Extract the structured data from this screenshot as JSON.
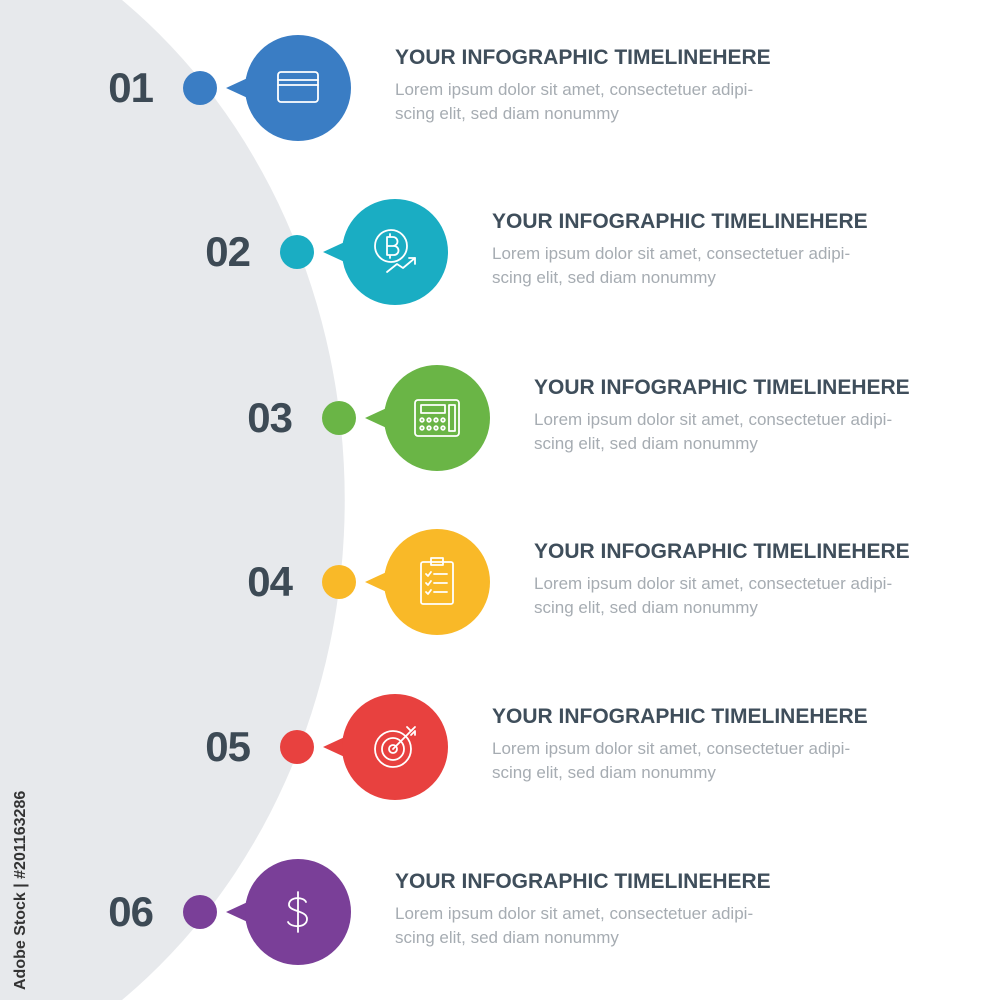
{
  "items": [
    {
      "number": "01",
      "title": "YOUR INFOGRAPHIC TIMELINEHERE",
      "line1": "Lorem ipsum dolor sit amet, consectetuer adipi-",
      "line2": "scing elit, sed diam nonummy",
      "color": "#3a7dc4",
      "icon": "credit-card-icon"
    },
    {
      "number": "02",
      "title": "YOUR INFOGRAPHIC TIMELINEHERE",
      "line1": "Lorem ipsum dolor sit amet, consectetuer adipi-",
      "line2": "scing elit, sed diam nonummy",
      "color": "#1aadc3",
      "icon": "bitcoin-growth-icon"
    },
    {
      "number": "03",
      "title": "YOUR INFOGRAPHIC TIMELINEHERE",
      "line1": "Lorem ipsum dolor sit amet, consectetuer adipi-",
      "line2": "scing elit, sed diam nonummy",
      "color": "#6ab546",
      "icon": "card-terminal-icon"
    },
    {
      "number": "04",
      "title": "YOUR INFOGRAPHIC TIMELINEHERE",
      "line1": "Lorem ipsum dolor sit amet, consectetuer adipi-",
      "line2": "scing elit, sed diam nonummy",
      "color": "#f9b928",
      "icon": "clipboard-checklist-icon"
    },
    {
      "number": "05",
      "title": "YOUR INFOGRAPHIC TIMELINEHERE",
      "line1": "Lorem ipsum dolor sit amet, consectetuer adipi-",
      "line2": "scing elit, sed diam nonummy",
      "color": "#e8413f",
      "icon": "target-arrow-icon"
    },
    {
      "number": "06",
      "title": "YOUR INFOGRAPHIC TIMELINEHERE",
      "line1": "Lorem ipsum dolor sit amet, consectetuer adipi-",
      "line2": "scing elit, sed diam nonummy",
      "color": "#7a3f98",
      "icon": "dollar-icon"
    }
  ],
  "watermark": "Adobe Stock | #201163286"
}
